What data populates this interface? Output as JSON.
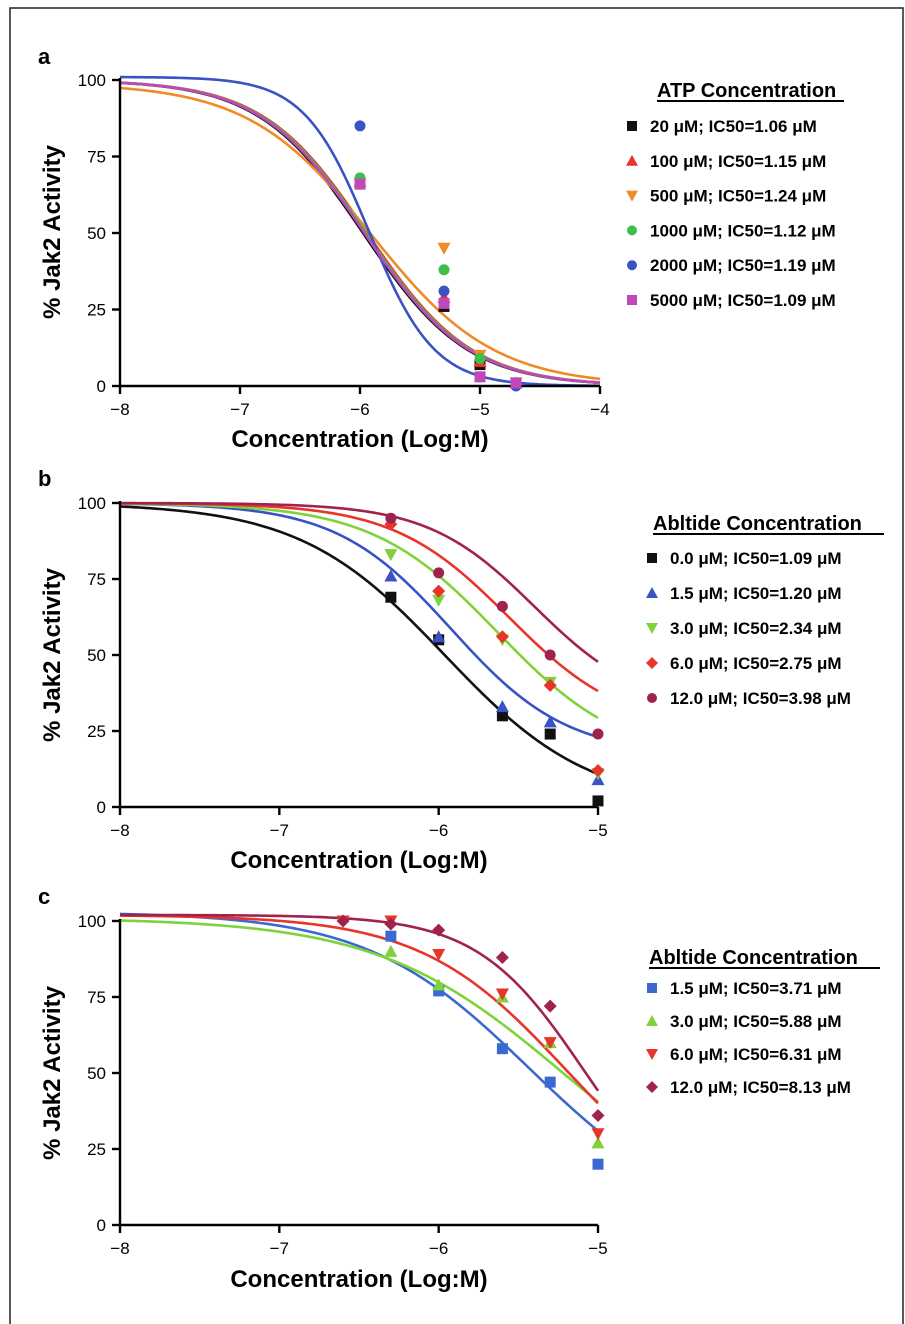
{
  "chart_data": [
    {
      "panel": "a",
      "type": "scatter",
      "xlabel": "Concentration (Log:M)",
      "ylabel": "% Jak2 Activity",
      "xlim": [
        -8,
        -4
      ],
      "ylim": [
        0,
        100
      ],
      "xticks": [
        -8,
        -7,
        -6,
        -5,
        -4
      ],
      "yticks": [
        0,
        25,
        50,
        75,
        100
      ],
      "xtick_labels": [
        "−8",
        "−7",
        "−6",
        "−5",
        "−4"
      ],
      "ytick_labels": [
        "0",
        "25",
        "50",
        "75",
        "100"
      ],
      "legend_title": "ATP Concentration",
      "legend_position": "right",
      "series": [
        {
          "name": "20 μM; IC50=1.06 μM",
          "color": "#111111",
          "marker": "square",
          "ic50": 1.06,
          "hill": 1.0,
          "top": 100,
          "points": [
            [
              -6.0,
              66
            ],
            [
              -5.3,
              26
            ],
            [
              -5.0,
              7
            ],
            [
              -4.7,
              1
            ]
          ]
        },
        {
          "name": "100 μM; IC50=1.15 μM",
          "color": "#e8352b",
          "marker": "triangle-up",
          "ic50": 1.15,
          "hill": 1.0,
          "top": 100,
          "points": [
            [
              -6.0,
              67
            ],
            [
              -5.3,
              29
            ],
            [
              -5.0,
              8
            ],
            [
              -4.7,
              1
            ]
          ]
        },
        {
          "name": "500 μM; IC50=1.24 μM",
          "color": "#f08a26",
          "marker": "triangle-down",
          "ic50": 1.24,
          "hill": 0.85,
          "top": 99,
          "points": [
            [
              -6.0,
              66
            ],
            [
              -5.3,
              45
            ],
            [
              -5.0,
              10
            ],
            [
              -4.7,
              1
            ]
          ]
        },
        {
          "name": "1000 μM; IC50=1.12 μM",
          "color": "#3fbf4a",
          "marker": "circle",
          "ic50": 1.12,
          "hill": 1.0,
          "top": 100,
          "points": [
            [
              -6.0,
              68
            ],
            [
              -5.3,
              38
            ],
            [
              -5.0,
              9
            ],
            [
              -4.7,
              1
            ]
          ]
        },
        {
          "name": "2000 μM; IC50=1.19 μM",
          "color": "#3a53c4",
          "marker": "circle",
          "ic50": 1.19,
          "hill": 1.6,
          "top": 101,
          "points": [
            [
              -6.0,
              85
            ],
            [
              -5.3,
              31
            ],
            [
              -5.0,
              3
            ],
            [
              -4.7,
              0
            ]
          ]
        },
        {
          "name": "5000 μM; IC50=1.09 μM",
          "color": "#c048b8",
          "marker": "square",
          "ic50": 1.09,
          "hill": 1.0,
          "top": 100,
          "points": [
            [
              -6.0,
              66
            ],
            [
              -5.3,
              27
            ],
            [
              -5.0,
              3
            ],
            [
              -4.7,
              1
            ]
          ]
        }
      ]
    },
    {
      "panel": "b",
      "type": "scatter",
      "xlabel": "Concentration (Log:M)",
      "ylabel": "% Jak2 Activity",
      "xlim": [
        -8,
        -5
      ],
      "ylim": [
        0,
        100
      ],
      "xticks": [
        -8,
        -7,
        -6,
        -5
      ],
      "yticks": [
        0,
        25,
        50,
        75,
        100
      ],
      "xtick_labels": [
        "−8",
        "−7",
        "−6",
        "−5"
      ],
      "ytick_labels": [
        "0",
        "25",
        "50",
        "75",
        "100"
      ],
      "legend_title": "Abltide Concentration",
      "legend_position": "right",
      "series": [
        {
          "name": "0.0 μM; IC50=1.09 μM",
          "color": "#111111",
          "marker": "square",
          "ic50": 1.09,
          "hill": 0.95,
          "top": 100,
          "bottom": 0,
          "points": [
            [
              -6.3,
              69
            ],
            [
              -6.0,
              55
            ],
            [
              -5.6,
              30
            ],
            [
              -5.3,
              24
            ],
            [
              -5.0,
              2
            ]
          ]
        },
        {
          "name": "1.5 μM; IC50=1.20 μM",
          "color": "#3a53c4",
          "marker": "triangle-up",
          "ic50": 1.2,
          "hill": 1.2,
          "top": 100,
          "bottom": 17,
          "points": [
            [
              -6.3,
              76
            ],
            [
              -6.0,
              56
            ],
            [
              -5.6,
              33
            ],
            [
              -5.3,
              28
            ],
            [
              -5.0,
              9
            ]
          ]
        },
        {
          "name": "3.0 μM; IC50=2.34 μM",
          "color": "#7fd33a",
          "marker": "triangle-down",
          "ic50": 2.34,
          "hill": 1.1,
          "top": 100,
          "bottom": 15,
          "points": [
            [
              -6.3,
              83
            ],
            [
              -6.0,
              68
            ],
            [
              -5.6,
              55
            ],
            [
              -5.3,
              41
            ],
            [
              -5.0,
              11
            ]
          ]
        },
        {
          "name": "6.0 μM; IC50=2.75 μM",
          "color": "#e8352b",
          "marker": "diamond",
          "ic50": 2.75,
          "hill": 1.2,
          "top": 100,
          "bottom": 25,
          "points": [
            [
              -6.3,
              93
            ],
            [
              -6.0,
              71
            ],
            [
              -5.6,
              56
            ],
            [
              -5.3,
              40
            ],
            [
              -5.0,
              12
            ]
          ]
        },
        {
          "name": "12.0 μM; IC50=3.98 μM",
          "color": "#a0234f",
          "marker": "circle",
          "ic50": 3.98,
          "hill": 1.3,
          "top": 100,
          "bottom": 32,
          "points": [
            [
              -6.3,
              95
            ],
            [
              -6.0,
              77
            ],
            [
              -5.6,
              66
            ],
            [
              -5.3,
              50
            ],
            [
              -5.0,
              24
            ]
          ]
        }
      ]
    },
    {
      "panel": "c",
      "type": "scatter",
      "xlabel": "Concentration (Log:M)",
      "ylabel": "% Jak2 Activity",
      "xlim": [
        -8,
        -5
      ],
      "ylim": [
        0,
        100
      ],
      "xticks": [
        -8,
        -7,
        -6,
        -5
      ],
      "yticks": [
        0,
        25,
        50,
        75,
        100
      ],
      "xtick_labels": [
        "−8",
        "−7",
        "−6",
        "−5"
      ],
      "ytick_labels": [
        "0",
        "25",
        "50",
        "75",
        "100"
      ],
      "legend_title": "Abltide Concentration",
      "legend_position": "right",
      "series": [
        {
          "name": "1.5 μM; IC50=3.71 μM",
          "color": "#3a6ad0",
          "marker": "square",
          "ic50": 3.71,
          "hill": 0.85,
          "top": 103,
          "bottom": 0,
          "points": [
            [
              -6.3,
              95
            ],
            [
              -6.0,
              77
            ],
            [
              -5.6,
              58
            ],
            [
              -5.3,
              47
            ],
            [
              -5.0,
              20
            ]
          ]
        },
        {
          "name": "3.0 μM; IC50=5.88 μM",
          "color": "#7fd33a",
          "marker": "triangle-up",
          "ic50": 5.88,
          "hill": 0.75,
          "top": 101,
          "bottom": 0,
          "points": [
            [
              -6.3,
              90
            ],
            [
              -6.0,
              79
            ],
            [
              -5.6,
              75
            ],
            [
              -5.3,
              60
            ],
            [
              -5.0,
              27
            ]
          ]
        },
        {
          "name": "6.0 μM; IC50=6.31 μM",
          "color": "#e8352b",
          "marker": "triangle-down",
          "ic50": 6.31,
          "hill": 0.95,
          "top": 102,
          "bottom": 0,
          "points": [
            [
              -6.6,
              100
            ],
            [
              -6.3,
              100
            ],
            [
              -6.0,
              89
            ],
            [
              -5.6,
              76
            ],
            [
              -5.3,
              60
            ],
            [
              -5.0,
              30
            ]
          ]
        },
        {
          "name": "12.0 μM; IC50=8.13 μM",
          "color": "#a0234f",
          "marker": "diamond",
          "ic50": 8.13,
          "hill": 1.3,
          "top": 102,
          "bottom": 0,
          "points": [
            [
              -6.6,
              100
            ],
            [
              -6.3,
              99
            ],
            [
              -6.0,
              97
            ],
            [
              -5.6,
              88
            ],
            [
              -5.3,
              72
            ],
            [
              -5.0,
              36
            ]
          ]
        }
      ]
    }
  ]
}
